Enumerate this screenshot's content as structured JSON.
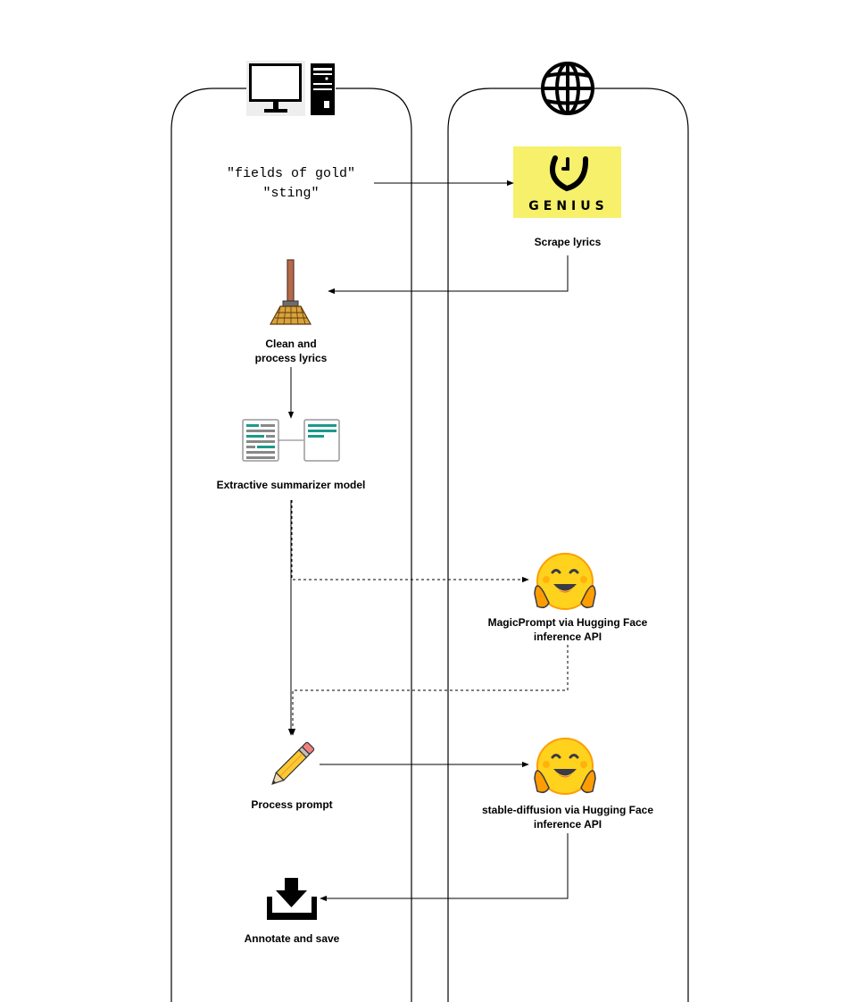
{
  "input": {
    "line1": "\"fields of gold\"",
    "line2": "\"sting\""
  },
  "genius": {
    "logo_text": "GENIUS",
    "caption": "Scrape lyrics"
  },
  "clean": {
    "line1": "Clean and",
    "line2": "process lyrics"
  },
  "summarizer": {
    "caption": "Extractive summarizer model"
  },
  "magicprompt": {
    "line1": "MagicPrompt via Hugging Face",
    "line2": "inference API"
  },
  "process_prompt": {
    "caption": "Process prompt"
  },
  "stable_diffusion": {
    "line1": "stable-diffusion via Hugging Face",
    "line2": "inference API"
  },
  "annotate": {
    "caption": "Annotate and save"
  },
  "icons": {
    "local_lane": "computer-icon",
    "web_lane": "globe-icon",
    "genius": "genius-logo",
    "clean": "broom-icon",
    "summarizer": "document-summary-icon",
    "huggingface": "hugging-face-icon",
    "process_prompt": "pencil-icon",
    "annotate": "download-icon"
  },
  "colors": {
    "genius_yellow": "#f6f06b",
    "hf_yellow": "#ffd21e",
    "hf_orange": "#ff9d00",
    "doc_teal": "#1a9a8a"
  }
}
